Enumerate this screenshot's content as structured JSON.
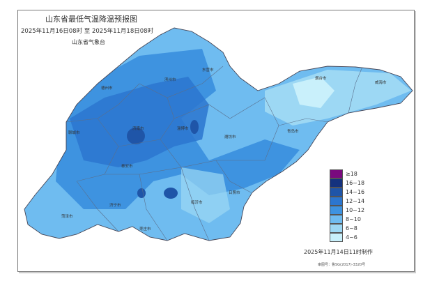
{
  "map": {
    "title": "山东省最低气温降温预报图",
    "period": "2025年11月16日08时  至  2025年11月18日08时",
    "issuer": "山东省气象台",
    "made_time": "2025年11月14日11时制作",
    "approval_number": "审图号：鲁SG(2017)-3320号",
    "cities": [
      "德州市",
      "滨州市",
      "东营市",
      "烟台市",
      "威海市",
      "聊城市",
      "济南市",
      "淄博市",
      "潍坊市",
      "青岛市",
      "泰安市",
      "济宁市",
      "临沂市",
      "日照市",
      "菏泽市",
      "枣庄市"
    ],
    "legend": [
      {
        "label": "≥18",
        "color": "#7a0a7e"
      },
      {
        "label": "16~18",
        "color": "#14327e"
      },
      {
        "label": "14~16",
        "color": "#1f55a8"
      },
      {
        "label": "12~14",
        "color": "#2c76cf"
      },
      {
        "label": "10~12",
        "color": "#3e93e0"
      },
      {
        "label": "8~10",
        "color": "#6fbcf0"
      },
      {
        "label": "6~8",
        "color": "#9dd8f4"
      },
      {
        "label": "4~6",
        "color": "#c9f0fb"
      }
    ]
  }
}
